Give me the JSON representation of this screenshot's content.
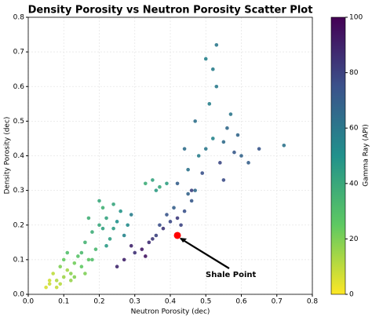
{
  "chart_data": {
    "type": "scatter",
    "title": "Density Porosity vs Neutron Porosity Scatter Plot",
    "xlabel": "Neutron Porosity (dec)",
    "ylabel": "Density Porosity (dec)",
    "xlim": [
      0,
      0.8
    ],
    "ylim": [
      0,
      0.8
    ],
    "xticks": [
      {
        "value": 0,
        "label": "0.0"
      },
      0.1,
      0.2,
      0.3,
      0.4,
      0.5,
      0.6,
      0.7,
      0.8
    ],
    "yticks": [
      {
        "value": 0,
        "label": "0.0"
      },
      0.1,
      0.2,
      0.3,
      0.4,
      0.5,
      0.6,
      0.7,
      0.8
    ],
    "grid": true,
    "colormap": "viridis_r",
    "colorbar": {
      "label": "Gamma Ray (API)",
      "clim": [
        0,
        100
      ],
      "ticks": [
        0,
        20,
        40,
        60,
        80,
        100
      ]
    },
    "x": [
      0.06,
      0.08,
      0.1,
      0.12,
      0.07,
      0.09,
      0.11,
      0.13,
      0.15,
      0.05,
      0.08,
      0.1,
      0.12,
      0.14,
      0.16,
      0.09,
      0.11,
      0.06,
      0.13,
      0.17,
      0.16,
      0.18,
      0.2,
      0.22,
      0.24,
      0.26,
      0.19,
      0.21,
      0.23,
      0.25,
      0.17,
      0.2,
      0.28,
      0.22,
      0.24,
      0.27,
      0.18,
      0.15,
      0.29,
      0.21,
      0.25,
      0.27,
      0.3,
      0.32,
      0.34,
      0.36,
      0.38,
      0.4,
      0.42,
      0.44,
      0.46,
      0.33,
      0.37,
      0.41,
      0.45,
      0.29,
      0.35,
      0.39,
      0.43,
      0.47,
      0.33,
      0.35,
      0.37,
      0.39,
      0.36,
      0.42,
      0.45,
      0.48,
      0.5,
      0.52,
      0.55,
      0.58,
      0.6,
      0.47,
      0.51,
      0.53,
      0.56,
      0.49,
      0.54,
      0.57,
      0.44,
      0.62,
      0.65,
      0.5,
      0.53,
      0.59,
      0.46,
      0.52,
      0.55,
      0.72
    ],
    "values": [
      0.03,
      0.04,
      0.05,
      0.06,
      0.06,
      0.08,
      0.07,
      0.09,
      0.08,
      0.02,
      0.02,
      0.1,
      0.04,
      0.11,
      0.06,
      0.03,
      0.12,
      0.04,
      0.05,
      0.1,
      0.15,
      0.18,
      0.2,
      0.22,
      0.19,
      0.24,
      0.13,
      0.25,
      0.16,
      0.21,
      0.22,
      0.27,
      0.2,
      0.14,
      0.26,
      0.17,
      0.1,
      0.12,
      0.23,
      0.19,
      0.08,
      0.1,
      0.12,
      0.13,
      0.15,
      0.17,
      0.19,
      0.21,
      0.22,
      0.24,
      0.27,
      0.11,
      0.2,
      0.25,
      0.29,
      0.14,
      0.16,
      0.23,
      0.2,
      0.3,
      0.32,
      0.33,
      0.31,
      0.32,
      0.3,
      0.32,
      0.36,
      0.4,
      0.42,
      0.45,
      0.44,
      0.41,
      0.4,
      0.5,
      0.55,
      0.6,
      0.48,
      0.35,
      0.38,
      0.52,
      0.42,
      0.38,
      0.42,
      0.68,
      0.72,
      0.46,
      0.3,
      0.65,
      0.33,
      0.43
    ],
    "gamma": [
      8,
      12,
      15,
      18,
      10,
      20,
      14,
      22,
      25,
      6,
      9,
      24,
      16,
      28,
      20,
      11,
      30,
      7,
      19,
      26,
      35,
      38,
      40,
      42,
      45,
      48,
      33,
      36,
      44,
      50,
      37,
      40,
      52,
      46,
      41,
      55,
      30,
      32,
      58,
      43,
      88,
      90,
      85,
      92,
      86,
      80,
      84,
      78,
      82,
      75,
      72,
      94,
      76,
      70,
      68,
      89,
      83,
      74,
      79,
      66,
      38,
      42,
      40,
      44,
      45,
      70,
      62,
      58,
      60,
      55,
      65,
      72,
      68,
      63,
      57,
      59,
      66,
      75,
      78,
      61,
      64,
      70,
      73,
      56,
      60,
      67,
      80,
      58,
      77,
      62
    ],
    "highlight": {
      "x": 0.42,
      "y": 0.17,
      "color": "#ff0000"
    },
    "annotation": "Shale Point"
  }
}
